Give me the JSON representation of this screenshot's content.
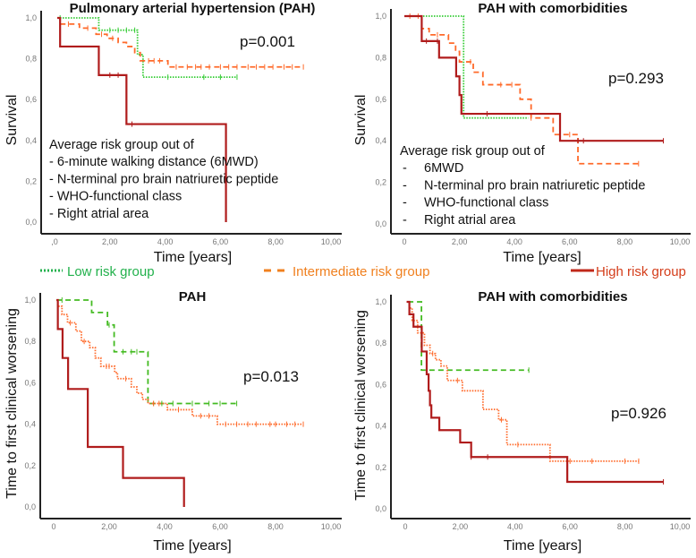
{
  "legend": [
    {
      "label": "Low risk group",
      "color": "#22b14c",
      "style": "dotted",
      "line_color": "#33cc33"
    },
    {
      "label": "Intermediate risk group",
      "color": "#f0801f",
      "style": "dashed",
      "line_color": "#ff6a2a"
    },
    {
      "label": "High risk group",
      "color": "#d43d1a",
      "style": "solid",
      "line_color": "#b01c1c"
    }
  ],
  "chart_data": [
    {
      "type": "line",
      "title": "Pulmonary arterial hypertension (PAH)",
      "xlabel": "Time [years]",
      "ylabel": "Survival",
      "xlim": [
        0,
        10
      ],
      "ylim": [
        0,
        1
      ],
      "xticks": [
        ",0",
        "2,00",
        "4,00",
        "6,00",
        "8,00",
        "10,00"
      ],
      "yticks": [
        "0,0",
        "0,2",
        "0,4",
        "0,6",
        "0,8",
        "1,0"
      ],
      "pvalue": "p=0.001",
      "note": [
        "Average risk group out of",
        "- 6-minute walking distance (6MWD)",
        "- N-terminal pro brain natriuretic peptide",
        "- WHO-functional class",
        "- Right atrial area"
      ],
      "series": [
        {
          "name": "Low risk group",
          "style": "dotted",
          "color": "#33cc33",
          "steps": [
            [
              0.1,
              1.0
            ],
            [
              1.6,
              0.94
            ],
            [
              3.0,
              0.82
            ],
            [
              3.2,
              0.71
            ]
          ],
          "end": 6.6,
          "censors": [
            0.2,
            2.0,
            2.3,
            2.6,
            2.9,
            4.1,
            5.4,
            6.0,
            6.6
          ]
        },
        {
          "name": "Intermediate risk group",
          "style": "dashed",
          "color": "#ff6a2a",
          "steps": [
            [
              0.1,
              1.0
            ],
            [
              0.2,
              0.97
            ],
            [
              0.9,
              0.95
            ],
            [
              1.5,
              0.92
            ],
            [
              1.9,
              0.9
            ],
            [
              2.3,
              0.88
            ],
            [
              2.6,
              0.86
            ],
            [
              2.9,
              0.83
            ],
            [
              3.1,
              0.79
            ],
            [
              4.1,
              0.76
            ]
          ],
          "end": 9.0,
          "censors": [
            0.5,
            1.2,
            1.7,
            2.1,
            3.4,
            3.6,
            3.8,
            4.4,
            4.8,
            5.1,
            5.3,
            5.6,
            6.0,
            6.3,
            6.6,
            7.0,
            7.3,
            7.6,
            7.9,
            8.3,
            8.6,
            9.0
          ]
        },
        {
          "name": "High risk group",
          "style": "solid",
          "color": "#b01c1c",
          "steps": [
            [
              0.1,
              1.0
            ],
            [
              0.2,
              0.86
            ],
            [
              1.6,
              0.72
            ],
            [
              2.6,
              0.48
            ],
            [
              6.2,
              0.0
            ]
          ],
          "end": 6.2,
          "censors": [
            2.0,
            2.3,
            2.8
          ]
        }
      ]
    },
    {
      "type": "line",
      "title": "PAH with comorbidities",
      "xlabel": "Time [years]",
      "ylabel": "Survival",
      "xlim": [
        0,
        10
      ],
      "ylim": [
        0,
        1
      ],
      "xticks": [
        "0",
        "2,00",
        "4,00",
        "6,00",
        "8,00",
        "10,00"
      ],
      "yticks": [
        "0,0",
        "0,2",
        "0,4",
        "0,6",
        "0,8",
        "1,0"
      ],
      "pvalue": "p=0.293",
      "note": [
        "Average risk group out of",
        "6MWD",
        "N-terminal pro brain natriuretic peptide",
        "WHO-functional class",
        "Right atrial area"
      ],
      "series": [
        {
          "name": "Low risk group",
          "style": "dotted",
          "color": "#33cc33",
          "steps": [
            [
              0.0,
              1.0
            ],
            [
              2.15,
              0.51
            ]
          ],
          "end": 4.5,
          "censors": []
        },
        {
          "name": "Intermediate risk group",
          "style": "dashed",
          "color": "#ff6a2a",
          "steps": [
            [
              0.0,
              1.0
            ],
            [
              0.63,
              0.94
            ],
            [
              0.9,
              0.91
            ],
            [
              1.6,
              0.87
            ],
            [
              1.86,
              0.83
            ],
            [
              2.0,
              0.78
            ],
            [
              2.5,
              0.73
            ],
            [
              2.85,
              0.67
            ],
            [
              4.2,
              0.6
            ],
            [
              4.6,
              0.51
            ],
            [
              5.4,
              0.43
            ],
            [
              6.3,
              0.29
            ]
          ],
          "end": 8.5,
          "censors": [
            0.2,
            0.5,
            1.2,
            2.4,
            3.5,
            3.9,
            4.6,
            6.0,
            8.5
          ]
        },
        {
          "name": "High risk group",
          "style": "solid",
          "color": "#b01c1c",
          "steps": [
            [
              0.0,
              1.0
            ],
            [
              0.63,
              0.88
            ],
            [
              1.26,
              0.8
            ],
            [
              1.88,
              0.71
            ],
            [
              2.0,
              0.62
            ],
            [
              2.07,
              0.53
            ],
            [
              5.65,
              0.4
            ]
          ],
          "end": 9.4,
          "censors": [
            0.8,
            1.2,
            3.0,
            6.3,
            6.5,
            9.4
          ]
        }
      ]
    },
    {
      "type": "line",
      "title": "PAH",
      "xlabel": "Time [years]",
      "ylabel": "Time to first clinical worsening",
      "xlim": [
        0,
        10
      ],
      "ylim": [
        0,
        1
      ],
      "xticks": [
        "0",
        "2,00",
        "4,00",
        "6,00",
        "8,00",
        "10,00"
      ],
      "yticks": [
        "0,0",
        "0,2",
        "0,4",
        "0,6",
        "0,8",
        "1,0"
      ],
      "pvalue": "p=0.013",
      "note": [],
      "series": [
        {
          "name": "Low risk group",
          "style": "dashed",
          "color": "#44bb22",
          "steps": [
            [
              0.1,
              1.0
            ],
            [
              1.37,
              0.94
            ],
            [
              1.94,
              0.88
            ],
            [
              2.18,
              0.75
            ],
            [
              3.4,
              0.5
            ]
          ],
          "end": 6.6,
          "censors": [
            0.3,
            2.0,
            2.5,
            2.8,
            3.0,
            3.6,
            3.9,
            4.3,
            5.0,
            5.6,
            6.0,
            6.6
          ]
        },
        {
          "name": "Intermediate risk group",
          "style": "dotted",
          "color": "#ff6a2a",
          "steps": [
            [
              0.1,
              1.0
            ],
            [
              0.15,
              0.97
            ],
            [
              0.3,
              0.93
            ],
            [
              0.5,
              0.89
            ],
            [
              0.8,
              0.85
            ],
            [
              1.0,
              0.8
            ],
            [
              1.3,
              0.77
            ],
            [
              1.5,
              0.72
            ],
            [
              1.7,
              0.68
            ],
            [
              2.2,
              0.65
            ],
            [
              2.3,
              0.62
            ],
            [
              2.8,
              0.58
            ],
            [
              3.0,
              0.55
            ],
            [
              3.2,
              0.52
            ],
            [
              3.4,
              0.5
            ],
            [
              4.1,
              0.47
            ],
            [
              5.0,
              0.44
            ],
            [
              5.9,
              0.4
            ]
          ],
          "end": 9.0,
          "censors": [
            0.6,
            1.1,
            1.9,
            2.0,
            2.6,
            3.6,
            3.8,
            4.5,
            5.3,
            5.6,
            6.2,
            6.6,
            7.0,
            7.3,
            7.8,
            8.0,
            8.4,
            8.7,
            9.0
          ]
        },
        {
          "name": "High risk group",
          "style": "solid",
          "color": "#b01c1c",
          "steps": [
            [
              0.1,
              1.0
            ],
            [
              0.15,
              0.86
            ],
            [
              0.32,
              0.72
            ],
            [
              0.52,
              0.57
            ],
            [
              1.23,
              0.29
            ],
            [
              2.5,
              0.14
            ],
            [
              4.7,
              0.0
            ]
          ],
          "end": 4.7,
          "censors": []
        }
      ]
    },
    {
      "type": "line",
      "title": "PAH with comorbidities",
      "xlabel": "Time [years]",
      "ylabel": "Time to first clinical worsening",
      "xlim": [
        0,
        10
      ],
      "ylim": [
        0,
        1
      ],
      "xticks": [
        "0",
        "2,00",
        "4,00",
        "6,00",
        "8,00",
        "10,00"
      ],
      "yticks": [
        "0,0",
        "0,2",
        "0,4",
        "0,6",
        "0,8",
        "1,0"
      ],
      "pvalue": "p=0.926",
      "note": [],
      "series": [
        {
          "name": "Low risk group",
          "style": "dashed",
          "color": "#44bb22",
          "steps": [
            [
              0.1,
              1.0
            ],
            [
              0.59,
              0.67
            ]
          ],
          "end": 4.5,
          "censors": [
            4.5
          ]
        },
        {
          "name": "Intermediate risk group",
          "style": "dotted",
          "color": "#ff6a2a",
          "steps": [
            [
              0.1,
              1.0
            ],
            [
              0.15,
              0.97
            ],
            [
              0.25,
              0.91
            ],
            [
              0.45,
              0.85
            ],
            [
              0.7,
              0.79
            ],
            [
              0.9,
              0.75
            ],
            [
              1.1,
              0.72
            ],
            [
              1.3,
              0.69
            ],
            [
              1.53,
              0.62
            ],
            [
              2.08,
              0.57
            ],
            [
              2.83,
              0.48
            ],
            [
              3.4,
              0.43
            ],
            [
              3.7,
              0.31
            ],
            [
              5.27,
              0.23
            ]
          ],
          "end": 8.5,
          "censors": [
            1.0,
            1.9,
            3.5,
            4.1,
            6.0,
            6.8,
            8.0,
            8.5
          ]
        },
        {
          "name": "High risk group",
          "style": "solid",
          "color": "#b01c1c",
          "steps": [
            [
              0.05,
              1.0
            ],
            [
              0.15,
              0.94
            ],
            [
              0.3,
              0.88
            ],
            [
              0.6,
              0.76
            ],
            [
              0.78,
              0.65
            ],
            [
              0.85,
              0.57
            ],
            [
              0.9,
              0.5
            ],
            [
              0.95,
              0.44
            ],
            [
              1.24,
              0.38
            ],
            [
              2.0,
              0.32
            ],
            [
              2.4,
              0.25
            ],
            [
              5.9,
              0.13
            ]
          ],
          "end": 9.4,
          "censors": [
            2.4,
            3.0,
            9.4
          ]
        }
      ]
    }
  ]
}
